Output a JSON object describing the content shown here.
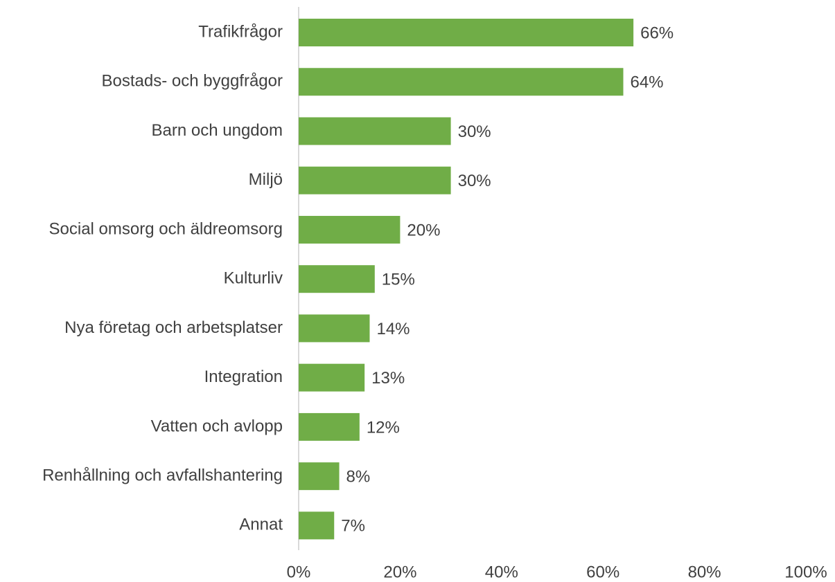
{
  "chart_data": {
    "type": "hbar",
    "categories": [
      "Trafikfrågor",
      "Bostads- och byggfrågor",
      "Barn och ungdom",
      "Miljö",
      "Social omsorg och äldreomsorg",
      "Kulturliv",
      "Nya företag och arbetsplatser",
      "Integration",
      "Vatten och avlopp",
      "Renhållning och avfallshantering",
      "Annat"
    ],
    "values": [
      66,
      64,
      30,
      30,
      20,
      15,
      14,
      13,
      12,
      8,
      7
    ],
    "value_labels": [
      "66%",
      "64%",
      "30%",
      "30%",
      "20%",
      "15%",
      "14%",
      "13%",
      "12%",
      "8%",
      "7%"
    ],
    "color": "#70ad47",
    "xlim": [
      0,
      100
    ],
    "xticks": [
      {
        "value": 0,
        "label": "0%"
      },
      {
        "value": 20,
        "label": "20%"
      },
      {
        "value": 40,
        "label": "40%"
      },
      {
        "value": 60,
        "label": "60%"
      },
      {
        "value": 80,
        "label": "80%"
      },
      {
        "value": 100,
        "label": "100%"
      }
    ],
    "grid": false
  }
}
